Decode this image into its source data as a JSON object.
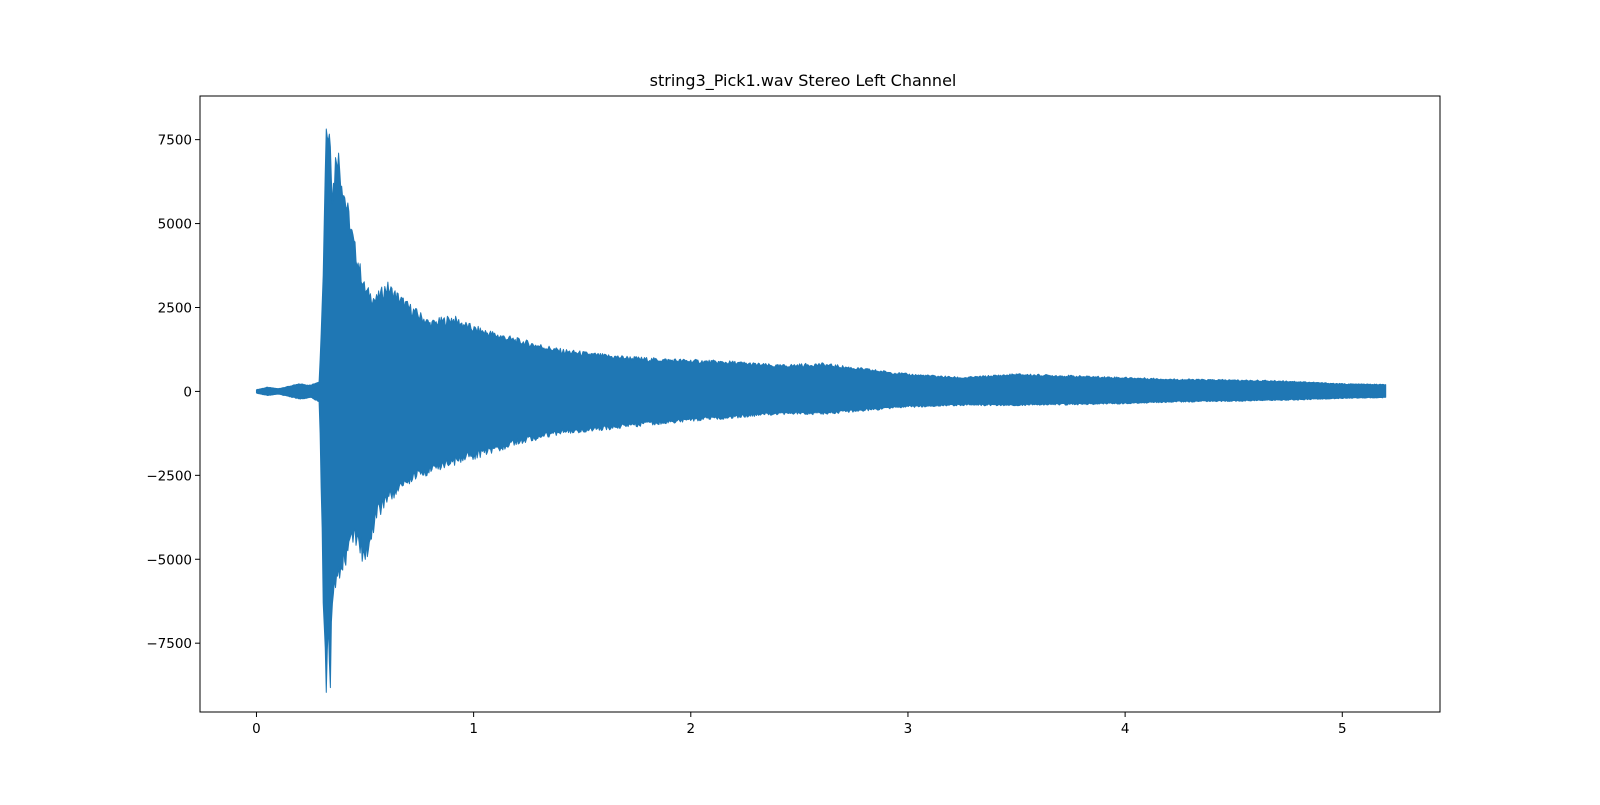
{
  "chart_data": {
    "type": "line",
    "title": "string3_Pick1.wav Stereo Left Channel",
    "xlabel": "",
    "ylabel": "",
    "xlim": [
      -0.26,
      5.45
    ],
    "ylim": [
      -9550,
      8800
    ],
    "x_ticks": [
      0,
      1,
      2,
      3,
      4,
      5
    ],
    "x_tick_labels": [
      "0",
      "1",
      "2",
      "3",
      "4",
      "5"
    ],
    "y_ticks": [
      7500,
      5000,
      2500,
      0,
      -2500,
      -5000,
      -7500
    ],
    "y_tick_labels": [
      "7500",
      "5000",
      "2500",
      "0",
      "−2500",
      "−5000",
      "−7500"
    ],
    "grid": false,
    "legend": "none",
    "color": "#1f77b4",
    "series": [
      {
        "x": [
          0.0,
          0.05,
          0.1,
          0.15,
          0.2,
          0.25,
          0.29,
          0.31,
          0.32,
          0.33,
          0.34,
          0.35,
          0.37,
          0.4,
          0.45,
          0.5,
          0.55,
          0.6,
          0.7,
          0.8,
          0.9,
          1.0,
          1.2,
          1.4,
          1.6,
          1.8,
          2.0,
          2.2,
          2.4,
          2.6,
          2.8,
          3.0,
          3.25,
          3.5,
          3.75,
          4.0,
          4.25,
          4.5,
          4.75,
          5.0,
          5.2
        ],
        "upper": [
          50,
          120,
          80,
          150,
          220,
          180,
          300,
          4200,
          8000,
          7600,
          7700,
          5800,
          7200,
          6000,
          4300,
          3000,
          2700,
          3100,
          2500,
          2000,
          2150,
          1850,
          1500,
          1200,
          1050,
          950,
          900,
          850,
          750,
          800,
          650,
          500,
          400,
          500,
          450,
          400,
          350,
          330,
          300,
          220,
          200
        ],
        "lower": [
          -50,
          -120,
          -80,
          -150,
          -220,
          -180,
          -300,
          -6800,
          -8700,
          -7300,
          -8400,
          -6000,
          -5500,
          -5000,
          -4300,
          -4900,
          -3700,
          -3200,
          -2600,
          -2300,
          -2100,
          -1900,
          -1500,
          -1200,
          -1100,
          -950,
          -850,
          -750,
          -650,
          -650,
          -550,
          -450,
          -400,
          -400,
          -380,
          -350,
          -300,
          -280,
          -250,
          -200,
          -180
        ]
      }
    ]
  }
}
